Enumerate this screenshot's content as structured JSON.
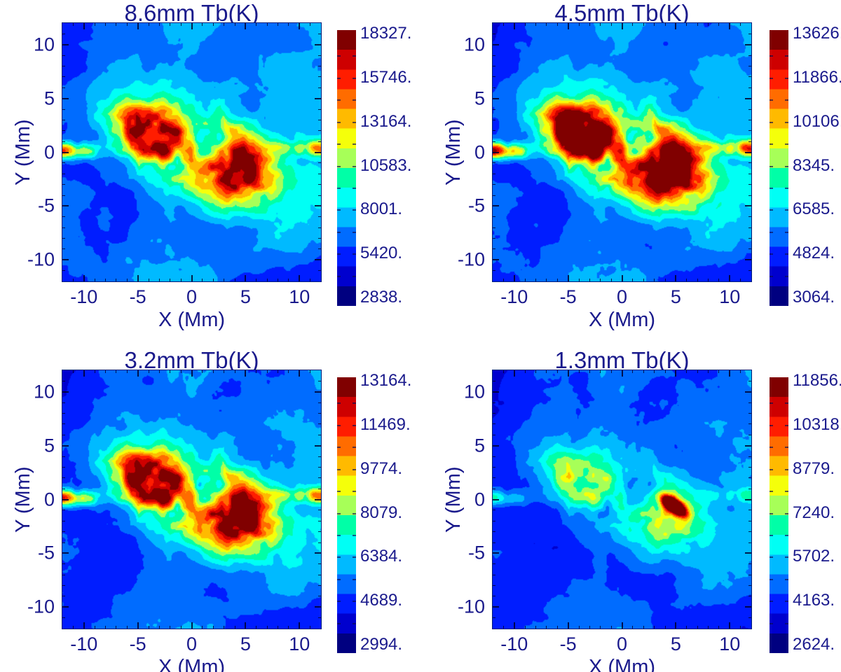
{
  "figure": {
    "background": "#ffffff",
    "text_color": "#1a1a8c",
    "tick_color": "#00002d",
    "kind": "2x2 grid of simulated solar millimeter-wavelength brightness temperature maps"
  },
  "chart_data": {
    "type": "heatmap",
    "layout": "2x2",
    "xlabel": "X (Mm)",
    "ylabel": "Y (Mm)",
    "xlim": [
      -12,
      12
    ],
    "ylim": [
      -12,
      12
    ],
    "xtick_values": [
      -10,
      -5,
      0,
      5,
      10
    ],
    "xtick_labels": [
      "-10",
      "-5",
      "0",
      "5",
      "10"
    ],
    "ytick_values": [
      -10,
      -5,
      0,
      5,
      10
    ],
    "ytick_labels": [
      "-10",
      "-5",
      "0",
      "5",
      "10"
    ],
    "minor_tick_step": 1,
    "colormap": "discrete jet, 14 bands, dark navy (low Tb) to dark red (high Tb)",
    "colormap_bands_low_to_high": [
      "#000080",
      "#0000CE",
      "#001DFF",
      "#006CFF",
      "#00BAFF",
      "#00FFF5",
      "#00FFA7",
      "#A7FF58",
      "#F5FF0A",
      "#FFBA00",
      "#FF6C00",
      "#FF1D00",
      "#CE0000",
      "#800000"
    ],
    "features": {
      "description": "Same solar active-region scene in all four panels: quiet-sun mottled blue/cyan background, two bright plage/loop clusters left and right of center, an arcade of fibrils between them, and narrow hot streaks at y≈0 on the left and right edges.",
      "gaussians": [
        [
          -3.6,
          1.6,
          2.4,
          1.7,
          -0.5,
          1.0
        ],
        [
          4.2,
          -1.4,
          2.6,
          1.9,
          -0.5,
          1.05
        ],
        [
          0.2,
          0.2,
          5.0,
          3.2,
          -0.55,
          0.55
        ],
        [
          -11.8,
          0.2,
          2.2,
          0.5,
          0.0,
          1.0
        ],
        [
          11.8,
          0.4,
          2.2,
          0.5,
          0.0,
          1.0
        ]
      ]
    },
    "panels": [
      {
        "id": "8.6mm",
        "title": "8.6mm Tb(K)",
        "tb_min": 2838,
        "tb_max": 18327,
        "colorbar_tick_values": [
          18327,
          15746,
          13164,
          10583,
          8001,
          5420,
          2838
        ],
        "colorbar_tick_labels": [
          "18327.",
          "15746.",
          "13164.",
          "10583.",
          "8001.",
          "5420.",
          "2838."
        ],
        "description": "Extended cyan/green active region with yellow-orange filaments and sparse red specks.",
        "render": {
          "base": 0.11,
          "amp": 0.36,
          "strength": 0.62,
          "lane": 0.11
        }
      },
      {
        "id": "4.5mm",
        "title": "4.5mm Tb(K)",
        "tb_min": 3064,
        "tb_max": 13626,
        "colorbar_tick_values": [
          13626,
          11866,
          10106,
          8345,
          6585,
          4824,
          3064
        ],
        "colorbar_tick_labels": [
          "13626.",
          "11866.",
          "10106.",
          "8345.",
          "6585.",
          "4824.",
          "3064."
        ],
        "description": "Hottest-looking panel: large orange/red patches over both plage clusters, dark-blue fibril lanes.",
        "render": {
          "base": 0.1,
          "amp": 0.36,
          "strength": 0.8,
          "lane": 0.14
        }
      },
      {
        "id": "3.2mm",
        "title": "3.2mm Tb(K)",
        "tb_min": 2994,
        "tb_max": 13164,
        "colorbar_tick_values": [
          13164,
          11469,
          9774,
          8079,
          6384,
          4689,
          2994
        ],
        "colorbar_tick_labels": [
          "13164.",
          "11469.",
          "9774.",
          "8079.",
          "6384.",
          "4689.",
          "2994."
        ],
        "description": "Similar to 4.5mm but slightly cooler; yellow/orange clusters on a mottled blue background.",
        "render": {
          "base": 0.09,
          "amp": 0.35,
          "strength": 0.7,
          "lane": 0.13
        }
      },
      {
        "id": "1.3mm",
        "title": "1.3mm Tb(K)",
        "tb_min": 2624,
        "tb_max": 11856,
        "colorbar_tick_values": [
          11856,
          10318,
          8779,
          7240,
          5702,
          4163,
          2624
        ],
        "colorbar_tick_labels": [
          "11856.",
          "10318.",
          "8779.",
          "7240.",
          "5702.",
          "4163.",
          "2624."
        ],
        "description": "Mostly dark/medium blue granulation with faint cyan-yellow traces of the active region and one intense red-orange kernel near (4.8, -0.6).",
        "render": {
          "base": 0.085,
          "amp": 0.33,
          "strength": 0.3,
          "lane": 0.08,
          "spike": [
            4.8,
            -0.6,
            0.9,
            0.4,
            -0.6,
            1.05
          ]
        }
      }
    ]
  }
}
